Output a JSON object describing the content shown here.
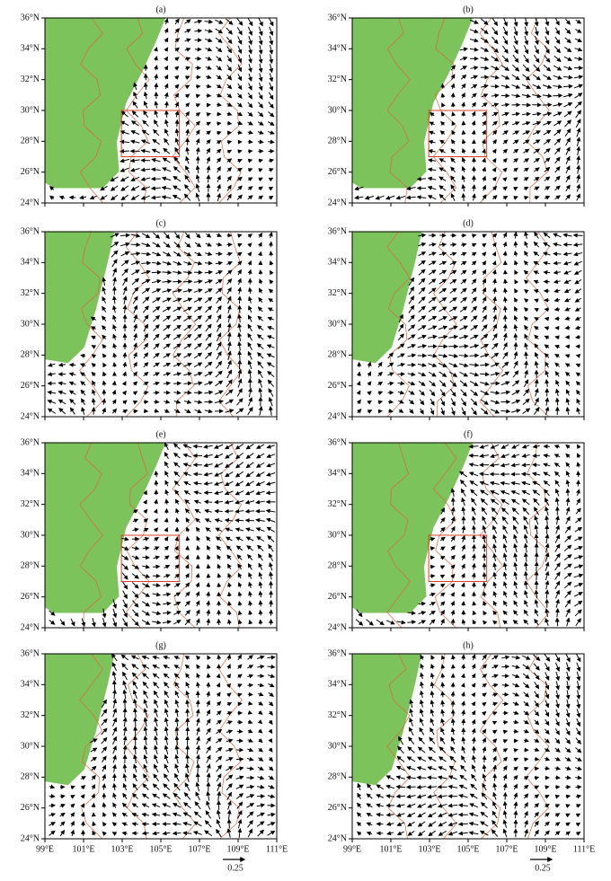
{
  "panels": [
    {
      "label": "(a)"
    },
    {
      "label": "(b)"
    },
    {
      "label": "(c)"
    },
    {
      "label": "(d)"
    },
    {
      "label": "(e)"
    },
    {
      "label": "(f)"
    },
    {
      "label": "(g)"
    },
    {
      "label": "(h)"
    }
  ],
  "y_axis": {
    "ticks": [
      {
        "value": 24,
        "label": "24°N"
      },
      {
        "value": 26,
        "label": "26°N"
      },
      {
        "value": 28,
        "label": "28°N"
      },
      {
        "value": 30,
        "label": "30°N"
      },
      {
        "value": 32,
        "label": "32°N"
      },
      {
        "value": 34,
        "label": "34°N"
      },
      {
        "value": 36,
        "label": "36°N"
      }
    ]
  },
  "x_axis": {
    "ticks": [
      {
        "value": 99,
        "label": "99°E"
      },
      {
        "value": 101,
        "label": "101°E"
      },
      {
        "value": 103,
        "label": "103°E"
      },
      {
        "value": 105,
        "label": "105°E"
      },
      {
        "value": 107,
        "label": "107°E"
      },
      {
        "value": 109,
        "label": "109°E"
      },
      {
        "value": 111,
        "label": "111°E"
      }
    ]
  },
  "reference_vector": {
    "label": "0.25"
  }
}
